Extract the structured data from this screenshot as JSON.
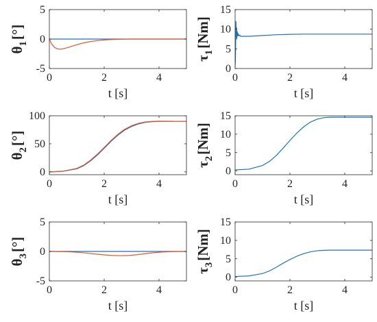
{
  "colors": {
    "blue": "#1f72b8",
    "orange": "#e4542a",
    "axis": "#262626"
  },
  "chart_data": [
    {
      "type": "line",
      "id": "theta1",
      "ylabel": {
        "main": "θ",
        "sub": "1",
        "rest": "[°]"
      },
      "xlabel": "t [s]",
      "xlim": [
        0,
        5
      ],
      "ylim": [
        -5,
        5
      ],
      "xticks": [
        0,
        2,
        4
      ],
      "yticks": [
        -5,
        0,
        5
      ],
      "series": [
        {
          "color": "#1f72b8",
          "x": [
            0,
            5
          ],
          "y": [
            0,
            0
          ]
        },
        {
          "color": "#e4542a",
          "x": [
            0,
            0.05,
            0.1,
            0.2,
            0.3,
            0.4,
            0.5,
            0.7,
            0.9,
            1.2,
            1.5,
            1.8,
            2.1,
            2.4,
            2.7,
            3.0,
            3.5,
            4.0,
            5.0
          ],
          "y": [
            0,
            -0.5,
            -0.95,
            -1.45,
            -1.68,
            -1.72,
            -1.65,
            -1.4,
            -1.1,
            -0.7,
            -0.42,
            -0.24,
            -0.12,
            -0.06,
            -0.02,
            0,
            0,
            0,
            0
          ]
        }
      ]
    },
    {
      "type": "line",
      "id": "tau1",
      "ylabel": {
        "main": "τ",
        "sub": "1",
        "rest": "[Nm]"
      },
      "xlabel": "t [s]",
      "xlim": [
        0,
        5
      ],
      "ylim": [
        0,
        15
      ],
      "xticks": [
        0,
        2,
        4
      ],
      "yticks": [
        0,
        5,
        10,
        15
      ],
      "series": [
        {
          "color": "#1f72b8",
          "x": [
            0,
            0.01,
            0.02,
            0.03,
            0.04,
            0.05,
            0.06,
            0.07,
            0.08,
            0.09,
            0.1,
            0.12,
            0.14,
            0.17,
            0.2,
            0.3,
            0.5,
            1.0,
            1.5,
            2.0,
            2.5,
            3.0,
            3.5,
            4.0,
            4.5,
            5.0
          ],
          "y": [
            0.5,
            2,
            6,
            12,
            8,
            10.5,
            7.5,
            9.5,
            8.2,
            9.2,
            8.4,
            8.8,
            8.3,
            8.5,
            8.2,
            8.2,
            8.2,
            8.4,
            8.6,
            8.7,
            8.75,
            8.75,
            8.75,
            8.75,
            8.75,
            8.75
          ]
        }
      ]
    },
    {
      "type": "line",
      "id": "theta2",
      "ylabel": {
        "main": "θ",
        "sub": "2",
        "rest": "[°]"
      },
      "xlabel": "t [s]",
      "xlim": [
        0,
        5
      ],
      "ylim": [
        -5,
        100
      ],
      "xticks": [
        0,
        2,
        4
      ],
      "yticks": [
        0,
        50,
        100
      ],
      "series": [
        {
          "color": "#1f72b8",
          "x": [
            0,
            0.5,
            1.0,
            1.25,
            1.5,
            1.75,
            2.0,
            2.25,
            2.5,
            2.75,
            3.0,
            3.25,
            3.5,
            3.75,
            4.0,
            4.5,
            5.0
          ],
          "y": [
            0,
            1,
            5.5,
            11,
            19.5,
            30,
            42,
            54.5,
            65.5,
            74.5,
            81,
            85.5,
            88.3,
            89.5,
            90,
            90,
            90
          ]
        },
        {
          "color": "#e4542a",
          "x": [
            0,
            0.5,
            1.0,
            1.25,
            1.5,
            1.75,
            2.0,
            2.25,
            2.5,
            2.75,
            3.0,
            3.25,
            3.5,
            3.75,
            4.0,
            4.5,
            5.0
          ],
          "y": [
            0,
            1.3,
            6.2,
            12,
            20.8,
            31.5,
            43.5,
            56,
            67,
            76,
            82.3,
            86.5,
            89,
            90,
            90.4,
            90.2,
            90
          ]
        }
      ]
    },
    {
      "type": "line",
      "id": "tau2",
      "ylabel": {
        "main": "τ",
        "sub": "2",
        "rest": "[Nm]"
      },
      "xlabel": "t [s]",
      "xlim": [
        0,
        5
      ],
      "ylim": [
        -1,
        15
      ],
      "xticks": [
        0,
        2,
        4
      ],
      "yticks": [
        0,
        5,
        10,
        15
      ],
      "series": [
        {
          "color": "#1f72b8",
          "x": [
            0,
            0.5,
            1.0,
            1.25,
            1.5,
            1.75,
            2.0,
            2.25,
            2.5,
            2.75,
            3.0,
            3.25,
            3.5,
            3.75,
            4.0,
            4.5,
            5.0
          ],
          "y": [
            0.3,
            0.5,
            1.5,
            2.6,
            4.2,
            6.2,
            8.3,
            10.3,
            12.0,
            13.3,
            14.1,
            14.5,
            14.6,
            14.6,
            14.6,
            14.6,
            14.6
          ]
        }
      ]
    },
    {
      "type": "line",
      "id": "theta3",
      "ylabel": {
        "main": "θ",
        "sub": "3",
        "rest": "[°]"
      },
      "xlabel": "t [s]",
      "xlim": [
        0,
        5
      ],
      "ylim": [
        -5,
        5
      ],
      "xticks": [
        0,
        2,
        4
      ],
      "yticks": [
        -5,
        0,
        5
      ],
      "series": [
        {
          "color": "#1f72b8",
          "x": [
            0,
            5
          ],
          "y": [
            0,
            0
          ]
        },
        {
          "color": "#e4542a",
          "x": [
            0,
            0.5,
            0.8,
            1.1,
            1.4,
            1.7,
            2.0,
            2.3,
            2.6,
            2.9,
            3.2,
            3.5,
            3.8,
            4.1,
            4.4,
            4.7,
            5.0
          ],
          "y": [
            0,
            -0.03,
            -0.08,
            -0.17,
            -0.3,
            -0.45,
            -0.58,
            -0.68,
            -0.72,
            -0.68,
            -0.55,
            -0.38,
            -0.22,
            -0.1,
            -0.04,
            -0.01,
            0
          ]
        }
      ]
    },
    {
      "type": "line",
      "id": "tau3",
      "ylabel": {
        "main": "τ",
        "sub": "3",
        "rest": "[Nm]"
      },
      "xlabel": "t [s]",
      "xlim": [
        0,
        5
      ],
      "ylim": [
        -1,
        15
      ],
      "xticks": [
        0,
        2,
        4
      ],
      "yticks": [
        0,
        5,
        10,
        15
      ],
      "series": [
        {
          "color": "#1f72b8",
          "x": [
            0,
            0.5,
            1.0,
            1.25,
            1.5,
            1.75,
            2.0,
            2.25,
            2.5,
            2.75,
            3.0,
            3.25,
            3.5,
            3.75,
            4.0,
            4.5,
            5.0
          ],
          "y": [
            0.2,
            0.35,
            1.0,
            1.7,
            2.7,
            3.8,
            4.8,
            5.7,
            6.4,
            6.9,
            7.2,
            7.3,
            7.35,
            7.35,
            7.35,
            7.35,
            7.35
          ]
        }
      ]
    }
  ]
}
